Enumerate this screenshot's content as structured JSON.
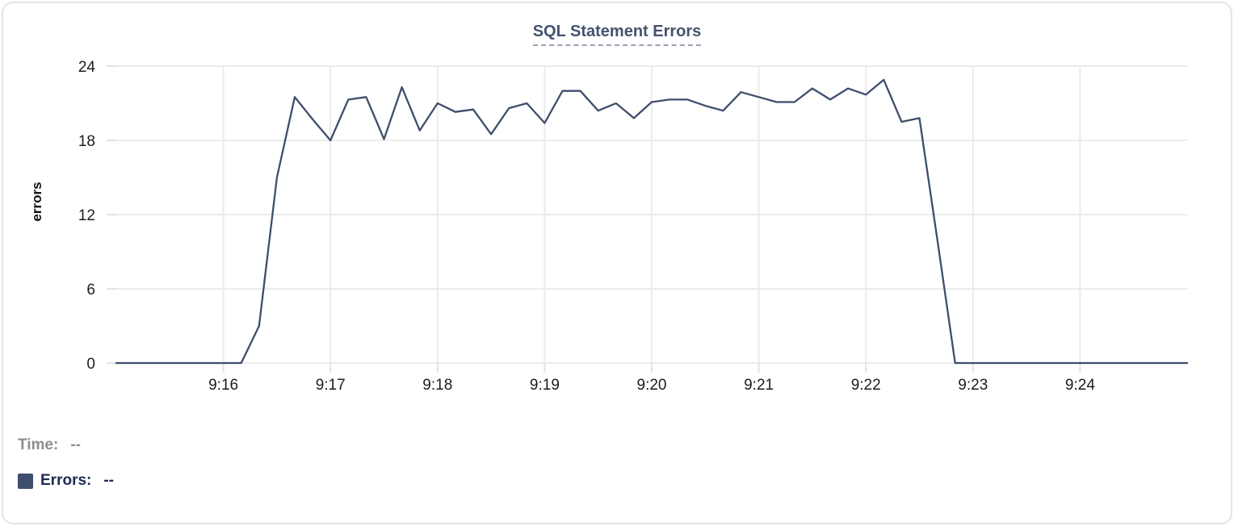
{
  "chart_title": "SQL Statement Errors",
  "tooltip": {
    "time_label": "Time:",
    "time_value": "--",
    "errors_label": "Errors:",
    "errors_value": "--"
  },
  "colors": {
    "line": "#3e4e6c",
    "grid": "#ebebeb",
    "tick": "#e3e3e5",
    "axis_text": "#1c1c1e",
    "title": "#44536e",
    "title_underline": "#99a2b4",
    "time_gray": "#8b8d91",
    "errors_navy": "#1c2b50",
    "swatch": "#3e4e6c",
    "card_border": "#e4e4e6"
  },
  "chart_data": {
    "type": "line",
    "title": "SQL Statement Errors",
    "xlabel": "",
    "ylabel": "errors",
    "ylim": [
      0,
      24
    ],
    "yticks": [
      0,
      6,
      12,
      18,
      24
    ],
    "x_range": [
      "9:15:00",
      "9:25:00"
    ],
    "x_tick_labels": [
      "9:16",
      "9:17",
      "9:18",
      "9:19",
      "9:20",
      "9:21",
      "9:22",
      "9:23",
      "9:24"
    ],
    "grid": true,
    "legend_position": "bottom-left",
    "series": [
      {
        "name": "Errors",
        "x": [
          "9:15:00",
          "9:15:10",
          "9:15:20",
          "9:15:30",
          "9:15:40",
          "9:15:50",
          "9:16:00",
          "9:16:10",
          "9:16:20",
          "9:16:30",
          "9:16:40",
          "9:16:50",
          "9:17:00",
          "9:17:10",
          "9:17:20",
          "9:17:30",
          "9:17:40",
          "9:17:50",
          "9:18:00",
          "9:18:10",
          "9:18:20",
          "9:18:30",
          "9:18:40",
          "9:18:50",
          "9:19:00",
          "9:19:10",
          "9:19:20",
          "9:19:30",
          "9:19:40",
          "9:19:50",
          "9:20:00",
          "9:20:10",
          "9:20:20",
          "9:20:30",
          "9:20:40",
          "9:20:50",
          "9:21:00",
          "9:21:10",
          "9:21:20",
          "9:21:30",
          "9:21:40",
          "9:21:50",
          "9:22:00",
          "9:22:10",
          "9:22:20",
          "9:22:30",
          "9:22:40",
          "9:22:50",
          "9:23:00",
          "9:23:10",
          "9:23:20",
          "9:23:30",
          "9:23:40",
          "9:23:50",
          "9:24:00",
          "9:24:10",
          "9:24:20",
          "9:24:30",
          "9:24:40",
          "9:24:50",
          "9:25:00"
        ],
        "values": [
          0,
          0,
          0,
          0,
          0,
          0,
          0,
          0,
          3,
          15,
          21.5,
          19.7,
          18,
          21.3,
          21.5,
          18.1,
          22.3,
          18.8,
          21,
          20.3,
          20.5,
          18.5,
          20.6,
          21,
          19.4,
          22,
          22,
          20.4,
          21,
          19.8,
          21.1,
          21.3,
          21.3,
          20.8,
          20.4,
          21.9,
          21.5,
          21.1,
          21.1,
          22.2,
          21.3,
          22.2,
          21.7,
          22.9,
          19.5,
          19.8,
          10,
          0,
          0,
          0,
          0,
          0,
          0,
          0,
          0,
          0,
          0,
          0,
          0,
          0,
          0
        ]
      }
    ]
  }
}
